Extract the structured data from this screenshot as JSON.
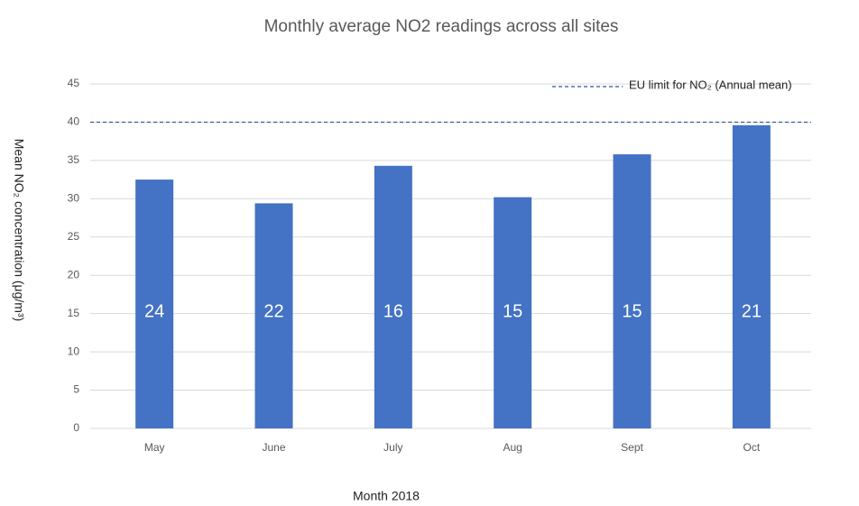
{
  "chart_data": {
    "type": "bar",
    "title": "Monthly average NO2 readings  across all sites",
    "x_label": "Month  2018",
    "y_label": "Mean NO₂ concentration (μg/m³)",
    "categories": [
      "May",
      "June",
      "July",
      "Aug",
      "Sept",
      "Oct"
    ],
    "values": [
      32.5,
      29.4,
      34.3,
      30.2,
      35.8,
      39.6
    ],
    "bar_labels": [
      24,
      22,
      16,
      15,
      15,
      21
    ],
    "color": "#4472c4",
    "ylim": [
      0,
      45
    ],
    "yticks": [
      0,
      5,
      10,
      15,
      20,
      25,
      30,
      35,
      40,
      45
    ],
    "grid": true,
    "reference_line": {
      "value": 40,
      "label": "EU limit for NO₂ (Annual mean)",
      "color": "#2f5597"
    },
    "legend": "top-right"
  }
}
